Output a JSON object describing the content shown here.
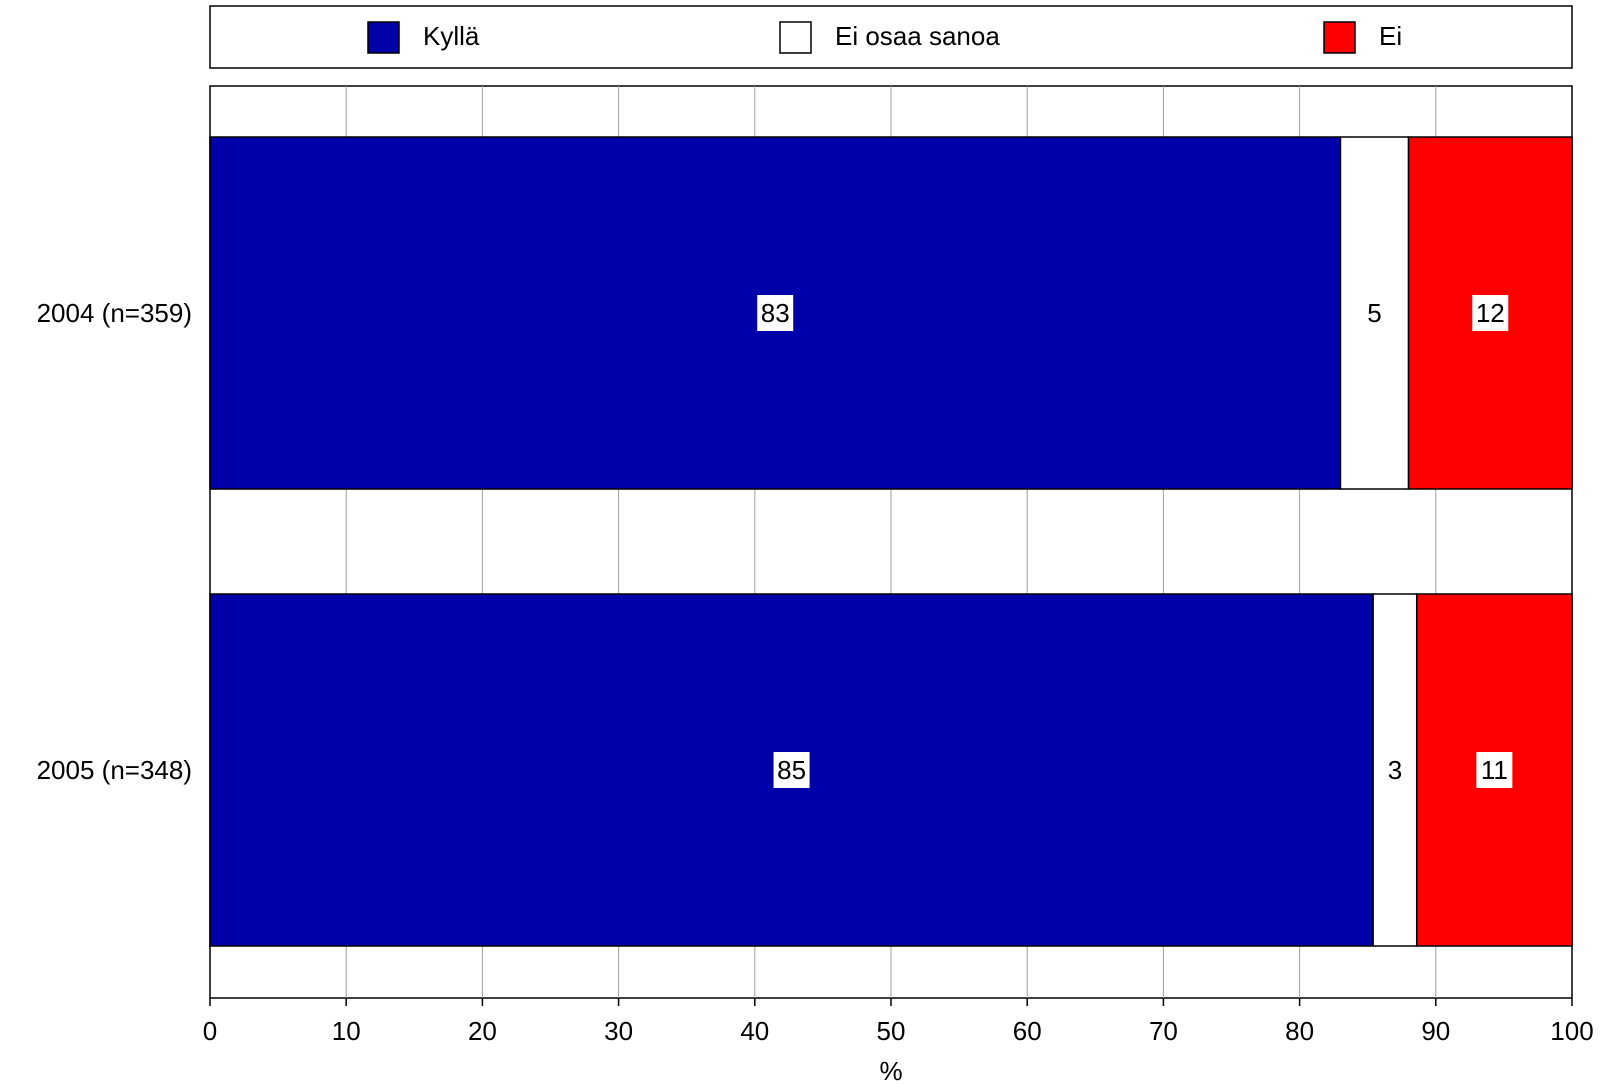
{
  "chart_data": {
    "type": "bar",
    "orientation": "horizontal",
    "stacked": true,
    "categories": [
      "2004 (n=359)",
      "2005 (n=348)"
    ],
    "series": [
      {
        "name": "Kyllä",
        "values": [
          83,
          85.4
        ],
        "labels": [
          "83",
          "85"
        ],
        "color": "#0000a8"
      },
      {
        "name": "Ei osaa sanoa",
        "values": [
          5,
          3.2
        ],
        "labels": [
          "5",
          "3"
        ],
        "color": "#ffffff"
      },
      {
        "name": "Ei",
        "values": [
          12,
          11.4
        ],
        "labels": [
          "12",
          "11"
        ],
        "color": "#ff0000"
      }
    ],
    "xlabel": "%",
    "xlim": [
      0,
      100
    ],
    "xticks": [
      0,
      10,
      20,
      30,
      40,
      50,
      60,
      70,
      80,
      90,
      100
    ],
    "grid": true,
    "legend_position": "top"
  }
}
